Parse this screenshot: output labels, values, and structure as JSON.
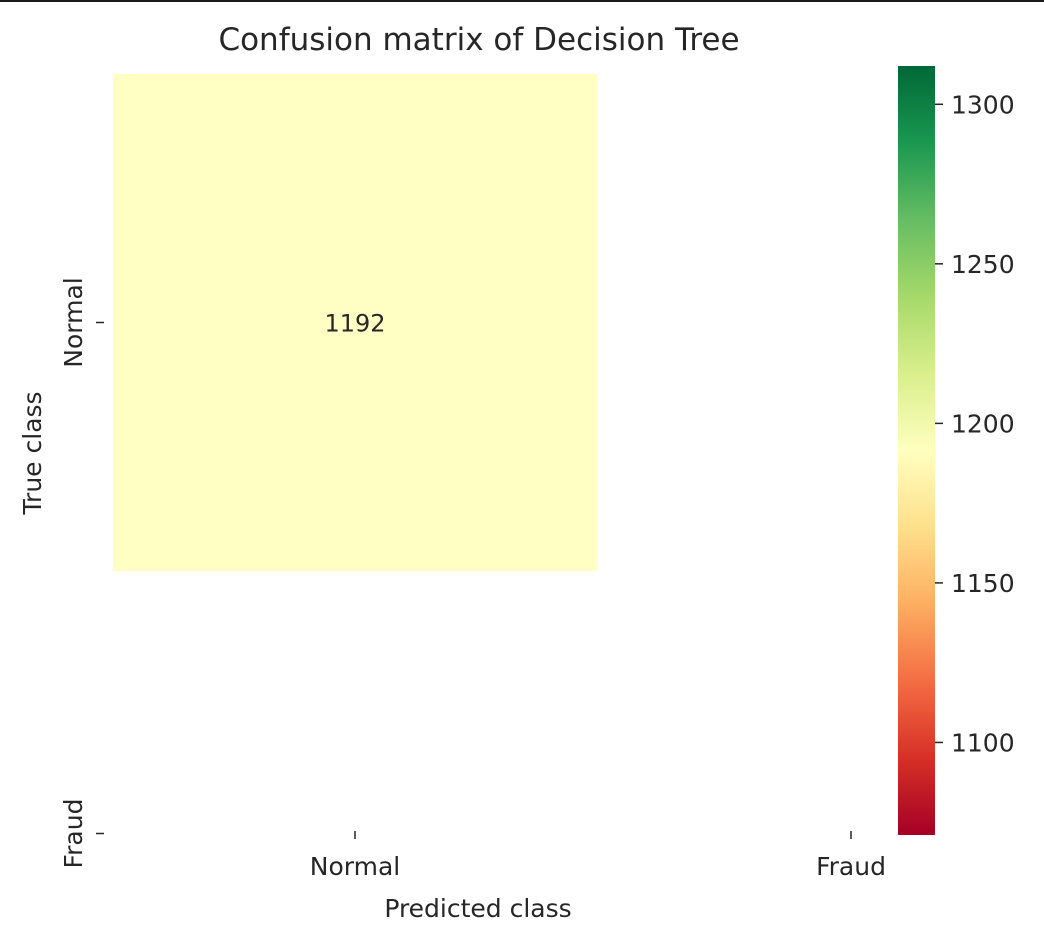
{
  "chart_data": {
    "type": "heatmap",
    "title": "Confusion matrix of Decision Tree",
    "xlabel": "Predicted class",
    "ylabel": "True class",
    "x_categories": [
      "Normal",
      "Fraud"
    ],
    "y_categories": [
      "Normal",
      "Fraud"
    ],
    "cells": [
      {
        "row": 0,
        "col": 0,
        "value": 1192,
        "label": "1192",
        "color": "#ffffc3"
      }
    ],
    "colormap": "RdYlGn",
    "colorbar": {
      "range": [
        1071,
        1312
      ],
      "ticks": [
        1100,
        1150,
        1200,
        1250,
        1300
      ],
      "tick_labels": [
        "1100",
        "1150",
        "1200",
        "1250",
        "1300"
      ],
      "colors": [
        "#a50026",
        "#d73027",
        "#f46d43",
        "#fdae61",
        "#fee08b",
        "#ffffbf",
        "#d9ef8b",
        "#a6d96a",
        "#66bd63",
        "#1a9850",
        "#006837"
      ]
    },
    "grid": false
  }
}
